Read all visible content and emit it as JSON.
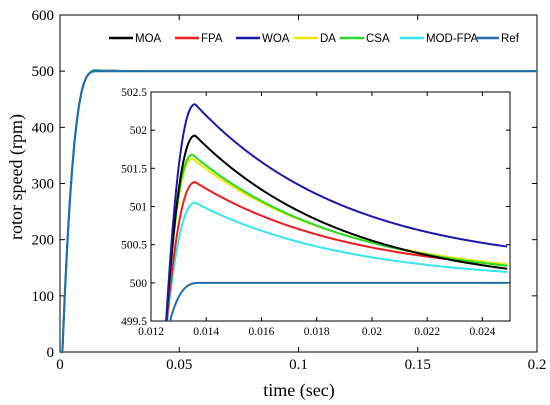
{
  "chart_data": {
    "type": "line",
    "xlabel": "time (sec)",
    "ylabel": "rotor speed (rpm)",
    "xlim": [
      0,
      0.2
    ],
    "ylim": [
      0,
      600
    ],
    "xticks": [
      "0",
      "0.05",
      "0.1",
      "0.15",
      "0.2"
    ],
    "yticks": [
      "0",
      "100",
      "200",
      "300",
      "400",
      "500",
      "600"
    ],
    "legend_position": "top",
    "series": [
      {
        "name": "MOA",
        "color": "#000000",
        "peak_t": 0.0136,
        "peak_y": 501.93,
        "end_y": 500.18
      },
      {
        "name": "FPA",
        "color": "#ee1c1c",
        "peak_t": 0.0136,
        "peak_y": 501.32,
        "end_y": 500.23
      },
      {
        "name": "WOA",
        "color": "#1a1aa8",
        "peak_t": 0.0136,
        "peak_y": 502.34,
        "end_y": 500.47
      },
      {
        "name": "DA",
        "color": "#f2e600",
        "peak_t": 0.0135,
        "peak_y": 501.63,
        "end_y": 500.24
      },
      {
        "name": "CSA",
        "color": "#22dd22",
        "peak_t": 0.0135,
        "peak_y": 501.68,
        "end_y": 500.22
      },
      {
        "name": "MOD-FPA",
        "color": "#33e6f0",
        "peak_t": 0.0136,
        "peak_y": 501.05,
        "end_y": 500.14
      },
      {
        "name": "Ref",
        "color": "#1f6fa8",
        "value": 500
      }
    ],
    "inset": {
      "xlim": [
        0.012,
        0.025
      ],
      "ylim": [
        499.5,
        502.5
      ],
      "xticks": [
        "0.012",
        "0.014",
        "0.016",
        "0.018",
        "0.02",
        "0.022",
        "0.024"
      ],
      "yticks": [
        "499.5",
        "500",
        "500.5",
        "501",
        "501.5",
        "502",
        "502.5"
      ]
    }
  }
}
